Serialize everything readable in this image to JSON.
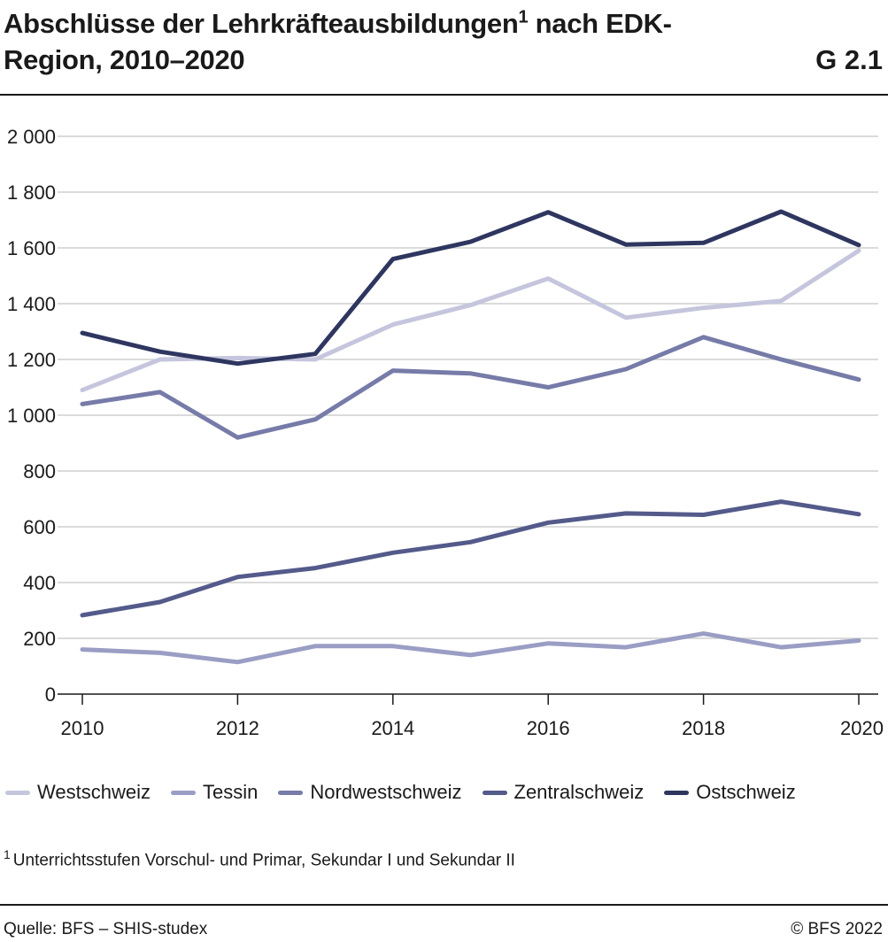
{
  "header": {
    "title_main": "Abschlüsse der Lehrkräfteausbildungen",
    "title_sup": "1",
    "title_rest": " nach EDK-Region, 2010–2020",
    "figure_id": "G 2.1"
  },
  "footnote": {
    "marker": "1",
    "text": "Unterrichtsstufen Vorschul- und Primar, Sekundar I und Sekundar II"
  },
  "source": "Quelle: BFS – SHIS-studex",
  "copyright": "© BFS 2022",
  "chart_data": {
    "type": "line",
    "title": "Abschlüsse der Lehrkräfteausbildungen nach EDK-Region, 2010–2020",
    "x": [
      2010,
      2011,
      2012,
      2013,
      2014,
      2015,
      2016,
      2017,
      2018,
      2019,
      2020
    ],
    "xticks": [
      2010,
      2012,
      2014,
      2016,
      2018,
      2020
    ],
    "xtick_labels": [
      "2010",
      "2012",
      "2014",
      "2016",
      "2018",
      "2020"
    ],
    "xlim": [
      2010,
      2020
    ],
    "ylim": [
      0,
      2000
    ],
    "yticks": [
      0,
      200,
      400,
      600,
      800,
      1000,
      1200,
      1400,
      1600,
      1800,
      2000
    ],
    "ytick_labels": [
      "0",
      "200",
      "400",
      "600",
      "800",
      "1 000",
      "1 200",
      "1 400",
      "1 600",
      "1 800",
      "2 000"
    ],
    "grid": true,
    "legend_position": "bottom",
    "series": [
      {
        "name": "Westschweiz",
        "color": "#c5c6dd",
        "values": [
          1090,
          1200,
          1205,
          1200,
          1325,
          1395,
          1490,
          1350,
          1385,
          1410,
          1590
        ]
      },
      {
        "name": "Tessin",
        "color": "#9a9ec4",
        "values": [
          160,
          148,
          115,
          172,
          172,
          140,
          182,
          168,
          217,
          168,
          192
        ]
      },
      {
        "name": "Nordwestschweiz",
        "color": "#767ba8",
        "values": [
          1040,
          1083,
          920,
          985,
          1160,
          1150,
          1100,
          1165,
          1280,
          1200,
          1128
        ]
      },
      {
        "name": "Zentralschweiz",
        "color": "#545a8a",
        "values": [
          283,
          330,
          420,
          452,
          507,
          545,
          615,
          648,
          643,
          690,
          645
        ]
      },
      {
        "name": "Ostschweiz",
        "color": "#2e3660",
        "values": [
          1295,
          1228,
          1185,
          1220,
          1560,
          1622,
          1728,
          1612,
          1618,
          1730,
          1610
        ]
      }
    ]
  }
}
